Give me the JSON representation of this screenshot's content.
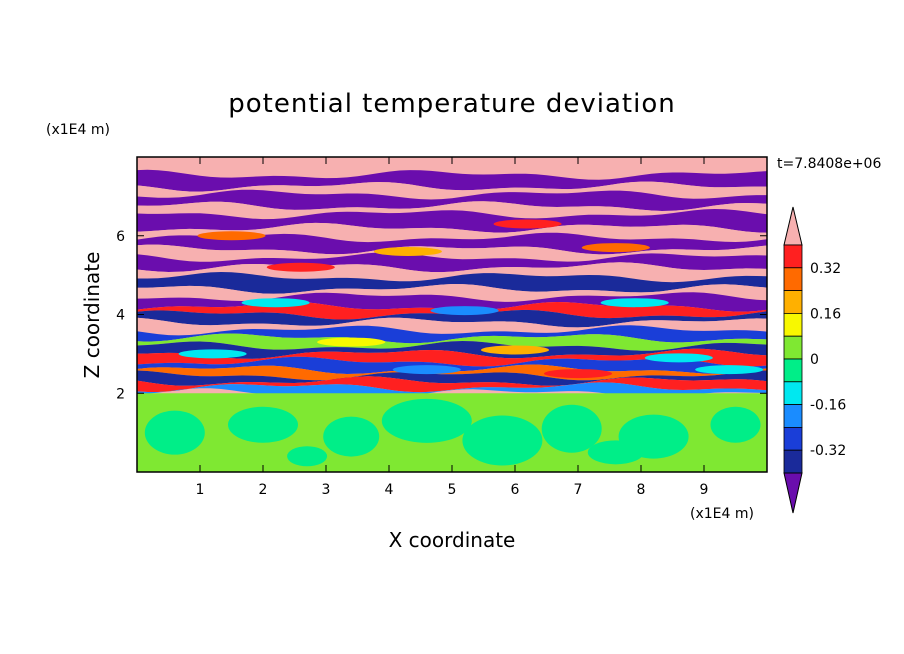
{
  "chart_data": {
    "type": "heatmap",
    "title": "potential temperature deviation",
    "xlabel": "X coordinate",
    "ylabel": "Z coordinate",
    "x_unit": "(x1E4 m)",
    "y_unit": "(x1E4 m)",
    "time_label": "t=7.8408e+06",
    "xlim": [
      0,
      10
    ],
    "ylim": [
      0,
      8
    ],
    "x_ticks": [
      "1",
      "2",
      "3",
      "4",
      "5",
      "6",
      "7",
      "8",
      "9"
    ],
    "y_ticks": [
      "2",
      "4",
      "6"
    ],
    "colorbar": {
      "labels": [
        "0.32",
        "0.16",
        "0",
        "-0.16",
        "-0.32"
      ],
      "label_values": [
        0.32,
        0.16,
        0,
        -0.16,
        -0.32
      ],
      "levels": [
        -0.4,
        -0.32,
        -0.24,
        -0.16,
        -0.08,
        0,
        0.08,
        0.16,
        0.24,
        0.32,
        0.4
      ],
      "colors": [
        "#6a0dad",
        "#1a2a9a",
        "#1a3ed8",
        "#1a8cff",
        "#00e8f0",
        "#00ee88",
        "#7fe832",
        "#f8f800",
        "#ffb000",
        "#ff6a00",
        "#ff2020",
        "#f7b0b0"
      ],
      "extend": "both"
    },
    "field_colors": {
      "lower_green": "#7fe832",
      "lower_teal": "#00ee88",
      "band_pink": "#f7b0b0",
      "band_purple": "#6a0dad"
    },
    "bands": [
      {
        "z": 7.72,
        "level": 11
      },
      {
        "z": 7.55,
        "level": 0
      },
      {
        "z": 7.25,
        "level": 11
      },
      {
        "z": 7.05,
        "level": 0
      },
      {
        "z": 6.75,
        "level": 11
      },
      {
        "z": 6.55,
        "level": 0
      },
      {
        "z": 6.2,
        "level": 11
      },
      {
        "z": 5.95,
        "level": 0
      },
      {
        "z": 5.65,
        "level": 11
      },
      {
        "z": 5.45,
        "level": 0
      },
      {
        "z": 5.2,
        "level": 11
      },
      {
        "z": 4.95,
        "level": 1
      },
      {
        "z": 4.65,
        "level": 11
      },
      {
        "z": 4.45,
        "level": 0
      },
      {
        "z": 4.2,
        "level": 10
      },
      {
        "z": 4.0,
        "level": 1
      },
      {
        "z": 3.8,
        "level": 11
      },
      {
        "z": 3.6,
        "level": 2
      },
      {
        "z": 3.4,
        "level": 6
      },
      {
        "z": 3.2,
        "level": 1
      },
      {
        "z": 3.0,
        "level": 10
      },
      {
        "z": 2.8,
        "level": 2
      },
      {
        "z": 2.6,
        "level": 9
      },
      {
        "z": 2.45,
        "level": 1
      },
      {
        "z": 2.3,
        "level": 10
      },
      {
        "z": 2.15,
        "level": 3
      }
    ],
    "lower_boundary_z": 2.0
  }
}
